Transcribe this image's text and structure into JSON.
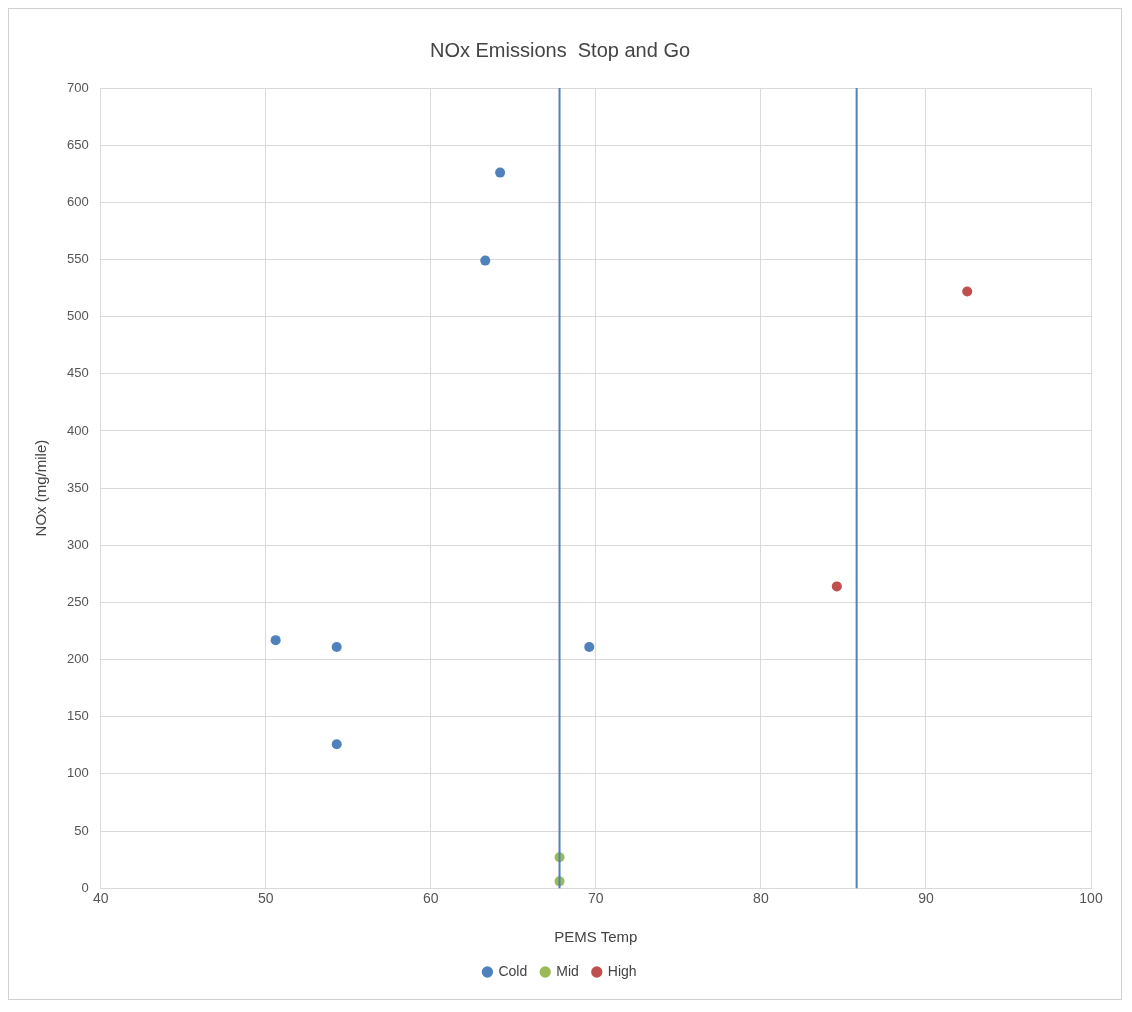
{
  "chart_data": {
    "type": "scatter",
    "title": "NOx Emissions  Stop and Go",
    "xlabel": "PEMS Temp",
    "ylabel": "NOx (mg/mile)",
    "series": [
      {
        "name": "Cold",
        "color": "#4f81bd",
        "x": [
          50.6,
          54.3,
          54.3,
          63.3,
          64.2,
          69.6
        ],
        "values": [
          217,
          211,
          126,
          549,
          626,
          211
        ]
      },
      {
        "name": "Mid",
        "color": "#9bbb59",
        "x": [
          67.8,
          67.8
        ],
        "values": [
          27,
          6
        ]
      },
      {
        "name": "High",
        "color": "#c0504d",
        "x": [
          84.6,
          92.5
        ],
        "values": [
          264,
          522
        ]
      }
    ],
    "ref_lines": [
      {
        "axis": "x",
        "value": 67.8,
        "color": "#4f81bd"
      },
      {
        "axis": "x",
        "value": 85.8,
        "color": "#4f81bd"
      }
    ],
    "xlim": [
      40,
      100
    ],
    "xticks": [
      40,
      50,
      60,
      70,
      80,
      90,
      100
    ],
    "ylim": [
      0,
      700
    ],
    "yticks": [
      0,
      50,
      100,
      150,
      200,
      250,
      300,
      350,
      400,
      450,
      500,
      550,
      600,
      650,
      700
    ],
    "grid": true,
    "legend": "bottom",
    "marker": "circle"
  }
}
